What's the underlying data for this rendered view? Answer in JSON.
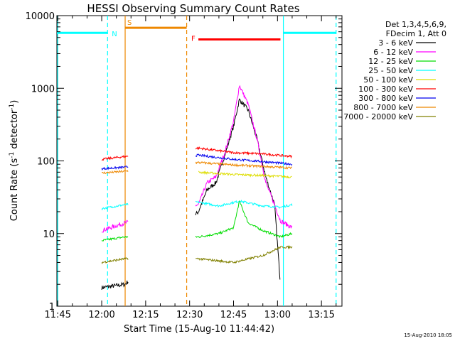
{
  "chart_data": {
    "type": "line",
    "title": "HESSI Observing Summary Count Rates",
    "xlabel": "Start Time (15-Aug-10 11:44:42)",
    "ylabel": "Count Rate (s-1 detector-1)",
    "ylabel_parts": {
      "pre": "Count Rate (s",
      "sup1": "-1",
      "mid": " detector",
      "sup2": "-1",
      "post": ")"
    },
    "y_scale": "log",
    "ylim": [
      1,
      10000
    ],
    "y_ticks": [
      1,
      10,
      100,
      1000,
      10000
    ],
    "y_tick_labels": [
      "1",
      "10",
      "100",
      "1000",
      "10000"
    ],
    "xlim": [
      "11:44:42",
      "13:22:00"
    ],
    "x_ticks": [
      "11:45",
      "12:00",
      "12:15",
      "12:30",
      "12:45",
      "13:00",
      "13:15"
    ],
    "x_tick_labels": [
      "11:45",
      "12:00",
      "12:15",
      "12:30",
      "12:45",
      "13:00",
      "13:15"
    ],
    "grid": false,
    "legend_position": "right",
    "legend_header": [
      "Det 1,3,4,5,6,9,",
      "FDecim 1, Att 0"
    ],
    "timestamp": "15-Aug-2010 18:05",
    "series": [
      {
        "name": "3 - 6 keV",
        "color": "#000000",
        "x": [
          "12:00",
          "12:08",
          "12:33",
          "12:36",
          "12:39",
          "12:42",
          "12:45",
          "12:47",
          "12:50",
          "12:53",
          "12:56",
          "12:59",
          "13:01"
        ],
        "y": [
          1.8,
          2,
          20,
          40,
          50,
          120,
          300,
          700,
          500,
          200,
          60,
          25,
          2
        ]
      },
      {
        "name": "6 - 12 keV",
        "color": "#ff00ff",
        "x": [
          "12:00",
          "12:08",
          "12:33",
          "12:36",
          "12:39",
          "12:42",
          "12:45",
          "12:47",
          "12:50",
          "12:53",
          "12:56",
          "12:59",
          "13:01",
          "13:05"
        ],
        "y": [
          11,
          14,
          25,
          50,
          60,
          130,
          350,
          1100,
          600,
          200,
          50,
          25,
          15,
          12
        ]
      },
      {
        "name": "12 - 25 keV",
        "color": "#00dd00",
        "x": [
          "12:00",
          "12:08",
          "12:33",
          "12:40",
          "12:45",
          "12:47",
          "12:50",
          "12:55",
          "13:01",
          "13:05"
        ],
        "y": [
          8,
          9,
          9,
          10,
          12,
          28,
          14,
          11,
          9,
          10
        ]
      },
      {
        "name": "25 - 50 keV",
        "color": "#00ffff",
        "x": [
          "12:00",
          "12:08",
          "12:33",
          "12:40",
          "12:47",
          "12:55",
          "13:01",
          "13:05"
        ],
        "y": [
          22,
          25,
          27,
          24,
          28,
          24,
          23,
          25
        ]
      },
      {
        "name": "50 - 100 keV",
        "color": "#dddd00",
        "x": [
          "12:33",
          "12:45",
          "12:55",
          "13:05"
        ],
        "y": [
          70,
          65,
          63,
          60
        ]
      },
      {
        "name": "100 - 300 keV",
        "color": "#ff0000",
        "x": [
          "12:00",
          "12:08",
          "12:33",
          "12:45",
          "12:55",
          "13:05"
        ],
        "y": [
          105,
          115,
          150,
          130,
          125,
          115
        ]
      },
      {
        "name": "300 - 800 keV",
        "color": "#0000ee",
        "x": [
          "12:00",
          "12:08",
          "12:33",
          "12:45",
          "12:55",
          "13:05"
        ],
        "y": [
          78,
          82,
          120,
          105,
          98,
          90
        ]
      },
      {
        "name": "800 - 7000 keV",
        "color": "#ee8800",
        "x": [
          "12:00",
          "12:08",
          "12:33",
          "12:45",
          "12:55",
          "13:05"
        ],
        "y": [
          68,
          72,
          95,
          88,
          84,
          80
        ]
      },
      {
        "name": "7000 - 20000 keV",
        "color": "#808000",
        "x": [
          "12:00",
          "12:08",
          "12:33",
          "12:45",
          "12:55",
          "13:01",
          "13:05"
        ],
        "y": [
          4,
          4.5,
          4.5,
          4,
          5,
          6.5,
          6.5
        ]
      }
    ],
    "flag_bars": [
      {
        "label": "N",
        "color": "#00ffff",
        "value": 5800,
        "segments": [
          [
            "11:44:42",
            "12:02"
          ],
          [
            "13:02",
            "13:20"
          ]
        ]
      },
      {
        "label": "S",
        "color": "#ee8800",
        "value": 6800,
        "segments": [
          [
            "12:08",
            "12:29"
          ]
        ]
      },
      {
        "label": "F",
        "color": "#ff0000",
        "value": 4700,
        "segments": [
          [
            "12:33",
            "13:01"
          ]
        ]
      }
    ],
    "vertical_markers": [
      {
        "x": "11:45",
        "color": "#00ffff",
        "style": "solid"
      },
      {
        "x": "12:02",
        "color": "#00ffff",
        "style": "dashed"
      },
      {
        "x": "12:08",
        "color": "#ee8800",
        "style": "solid"
      },
      {
        "x": "12:29",
        "color": "#ee8800",
        "style": "dashed"
      },
      {
        "x": "13:02",
        "color": "#00ffff",
        "style": "solid"
      },
      {
        "x": "13:20",
        "color": "#00ffff",
        "style": "dashed"
      }
    ],
    "gaps": [
      [
        "12:09",
        "12:32"
      ]
    ]
  }
}
